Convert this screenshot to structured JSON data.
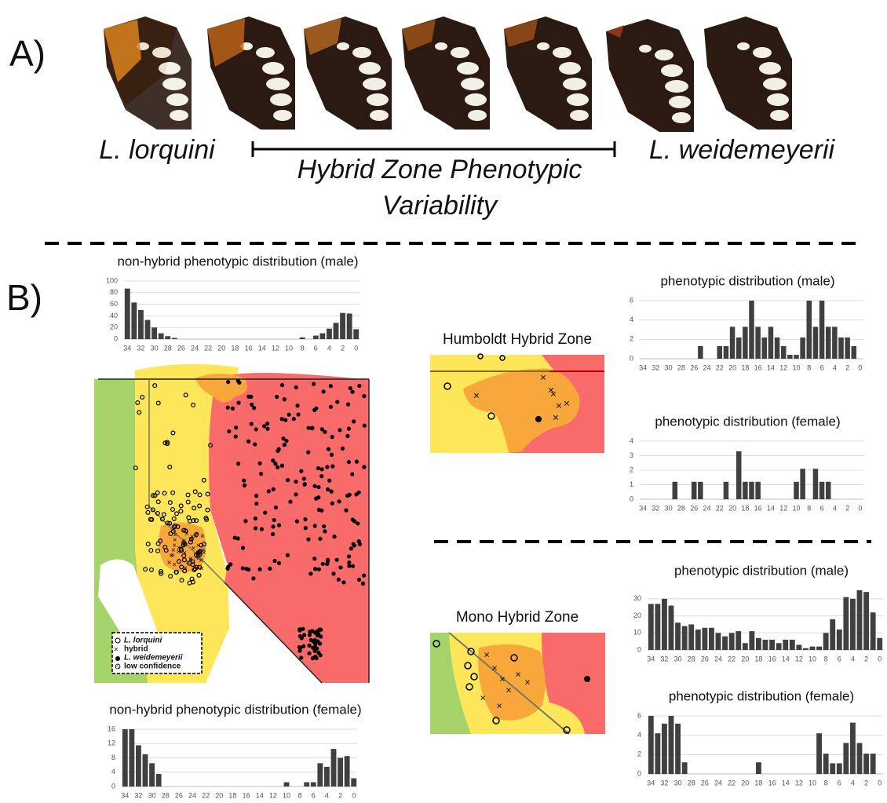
{
  "panel_a": {
    "label": "A)",
    "species_left": "L. lorquini",
    "range_label": [
      "Hybrid Zone Phenotypic",
      "Variability"
    ],
    "species_right": "L. weidemeyerii"
  },
  "panel_b": {
    "label": "B)",
    "humboldt_title": "Humboldt Hybrid Zone",
    "mono_title": "Mono Hybrid Zone",
    "legend": [
      "L. lorquini",
      "hybrid",
      "L. weidemeyerii",
      "low confidence"
    ]
  },
  "chart_data": [
    {
      "type": "bar",
      "title": "non-hybrid phenotypic distribution (male)",
      "color": "#404040",
      "grid": true,
      "categories": [
        "34",
        null,
        "32",
        null,
        "30",
        null,
        "28",
        null,
        "26",
        null,
        "24",
        null,
        "22",
        null,
        "20",
        null,
        "18",
        null,
        "16",
        null,
        "14",
        null,
        "12",
        null,
        "10",
        null,
        "8",
        null,
        "6",
        null,
        "4",
        null,
        "2",
        null,
        "0"
      ],
      "values": [
        87,
        63,
        50,
        33,
        20,
        10,
        5,
        2,
        0,
        0,
        0,
        0,
        0,
        0,
        0,
        0,
        0,
        0,
        0,
        0,
        0,
        0,
        0,
        0,
        0,
        0,
        3,
        0,
        6,
        10,
        18,
        28,
        45,
        44,
        17
      ],
      "ylim": [
        0,
        100
      ],
      "yticks": [
        0,
        20,
        40,
        60,
        80,
        100
      ]
    },
    {
      "type": "bar",
      "title": "phenotypic distribution (male)",
      "color": "#404040",
      "grid": true,
      "categories": [
        "34",
        null,
        "32",
        null,
        "30",
        null,
        "28",
        null,
        "26",
        null,
        "24",
        null,
        "22",
        null,
        "20",
        null,
        "18",
        null,
        "16",
        null,
        "14",
        null,
        "12",
        null,
        "10",
        null,
        "8",
        null,
        "6",
        null,
        "4",
        null,
        "2",
        null,
        "0"
      ],
      "values": [
        0,
        0,
        0,
        0,
        0,
        0,
        0,
        0,
        0,
        1.3,
        0,
        0,
        1.3,
        1.3,
        3.3,
        2.2,
        3.3,
        6,
        3.3,
        2.2,
        3.3,
        2.2,
        1.3,
        0.4,
        0.4,
        2.2,
        6,
        3.3,
        6,
        3.3,
        3.3,
        2.2,
        2.2,
        1.3,
        0
      ],
      "ylim": [
        0,
        6
      ],
      "yticks": [
        0,
        2,
        4,
        6
      ]
    },
    {
      "type": "bar",
      "title": "phenotypic distribution (female)",
      "color": "#404040",
      "grid": true,
      "categories": [
        "34",
        null,
        "32",
        null,
        "30",
        null,
        "28",
        null,
        "26",
        null,
        "24",
        null,
        "22",
        null,
        "20",
        null,
        "18",
        null,
        "16",
        null,
        "14",
        null,
        "12",
        null,
        "10",
        null,
        "8",
        null,
        "6",
        null,
        "4",
        null,
        "2",
        null,
        "0"
      ],
      "values": [
        0,
        0,
        0,
        0,
        0,
        1.2,
        0,
        0,
        1.2,
        1.2,
        0,
        0,
        0,
        1.2,
        0,
        3.3,
        1.2,
        1.2,
        1.2,
        0,
        0,
        0,
        0,
        0,
        1.2,
        2.1,
        0,
        2.1,
        1.2,
        1.2,
        0,
        0,
        0,
        0,
        0
      ],
      "ylim": [
        0,
        4
      ],
      "yticks": [
        0,
        1,
        2,
        3,
        4
      ]
    },
    {
      "type": "bar",
      "title": "phenotypic distribution (male)",
      "color": "#404040",
      "grid": true,
      "categories": [
        "34",
        null,
        "32",
        null,
        "30",
        null,
        "28",
        null,
        "26",
        null,
        "24",
        null,
        "22",
        null,
        "20",
        null,
        "18",
        null,
        "16",
        null,
        "14",
        null,
        "12",
        null,
        "10",
        null,
        "8",
        null,
        "6",
        null,
        "4",
        null,
        "2",
        null,
        "0"
      ],
      "values": [
        27,
        27,
        30,
        26,
        16,
        14,
        15,
        12,
        13,
        13,
        10,
        8,
        10,
        11,
        4,
        11,
        7,
        6,
        6,
        4,
        6,
        6,
        3,
        1,
        2,
        2,
        10,
        18,
        12,
        31,
        30,
        35,
        34,
        22,
        7
      ],
      "ylim": [
        0,
        35
      ],
      "yticks": [
        0,
        10,
        20,
        30
      ]
    },
    {
      "type": "bar",
      "title": "phenotypic distribution (female)",
      "color": "#404040",
      "grid": true,
      "categories": [
        "34",
        null,
        "32",
        null,
        "30",
        null,
        "28",
        null,
        "26",
        null,
        "24",
        null,
        "22",
        null,
        "20",
        null,
        "18",
        null,
        "16",
        null,
        "14",
        null,
        "12",
        null,
        "10",
        null,
        "8",
        null,
        "6",
        null,
        "4",
        null,
        "2",
        null,
        "0"
      ],
      "values": [
        6,
        4.2,
        5.2,
        6,
        5.2,
        1.2,
        0,
        0,
        0,
        0,
        0,
        0,
        0,
        0,
        0,
        0,
        1.2,
        0,
        0,
        0,
        0,
        0,
        0,
        0,
        0,
        4.2,
        2.1,
        1.1,
        1.1,
        3.2,
        5.3,
        3.2,
        2.1,
        2.1,
        0
      ],
      "ylim": [
        0,
        6
      ],
      "yticks": [
        0,
        2,
        4,
        6
      ]
    },
    {
      "type": "bar",
      "title": "non-hybrid phenotypic distribution (female)",
      "color": "#404040",
      "grid": true,
      "categories": [
        "34",
        null,
        "32",
        null,
        "30",
        null,
        "28",
        null,
        "26",
        null,
        "24",
        null,
        "22",
        null,
        "20",
        null,
        "18",
        null,
        "16",
        null,
        "14",
        null,
        "12",
        null,
        "10",
        null,
        "8",
        null,
        "6",
        null,
        "4",
        null,
        "2",
        null,
        "0"
      ],
      "values": [
        16,
        16,
        11.5,
        9,
        6.5,
        3.5,
        0,
        0,
        0,
        0,
        0,
        0,
        0,
        0,
        0,
        0,
        0,
        0,
        0,
        0,
        0,
        0,
        0,
        0,
        1.2,
        0,
        0,
        1.2,
        1.2,
        6.5,
        5.5,
        10.5,
        8,
        8.5,
        2.3
      ],
      "ylim": [
        0,
        16
      ],
      "yticks": [
        0,
        4,
        8,
        12,
        16
      ]
    }
  ]
}
